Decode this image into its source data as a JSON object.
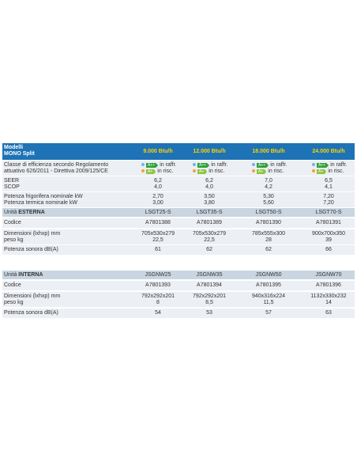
{
  "header": {
    "label": [
      "Modelli",
      "MONO Split"
    ],
    "columns": [
      "9.000 Btu/h",
      "12.000 Btu/h",
      "18.000 Btu/h",
      "24.000 Btu/h"
    ]
  },
  "efficiency": {
    "label": [
      "Classe di efficienza secondo Regolamento",
      "attuativo 626/2011 - Direttiva 2009/125/CE"
    ],
    "cells": [
      [
        {
          "badge": "A++",
          "text": "in raffr."
        },
        {
          "badge": "A+",
          "text": "in risc."
        }
      ],
      [
        {
          "badge": "A++",
          "text": "in raffr."
        },
        {
          "badge": "A+",
          "text": "in risc."
        }
      ],
      [
        {
          "badge": "A++",
          "text": "in raffr."
        },
        {
          "badge": "A+",
          "text": "in risc."
        }
      ],
      [
        {
          "badge": "A++",
          "text": "in raffr."
        },
        {
          "badge": "A+",
          "text": "in risc."
        }
      ]
    ]
  },
  "specs": [
    {
      "label": [
        "SEER",
        "SCOP"
      ],
      "cells": [
        [
          "6,2",
          "4,0"
        ],
        [
          "6,2",
          "4,0"
        ],
        [
          "7,0",
          "4,2"
        ],
        [
          "6,5",
          "4,1"
        ]
      ]
    },
    {
      "label": [
        "Potenza frigorifera nominale kW",
        "Potenza termica nominale kW"
      ],
      "cells": [
        [
          "2,70",
          "3,00"
        ],
        [
          "3,50",
          "3,80"
        ],
        [
          "5,30",
          "5,60"
        ],
        [
          "7,20",
          "7,20"
        ]
      ]
    }
  ],
  "outdoor": {
    "heading": [
      "Unità",
      "ESTERNA"
    ],
    "models": [
      "LSGT25-S",
      "LSGT35-S",
      "LSGT50-S",
      "LSGT70-S"
    ],
    "rows": [
      {
        "label": [
          "Codice"
        ],
        "cells": [
          [
            "A7801388"
          ],
          [
            "A7801389"
          ],
          [
            "A7801390"
          ],
          [
            "A7801391"
          ]
        ]
      },
      {
        "label": [
          "Dimensioni (lxhxp) mm",
          "peso kg"
        ],
        "cells": [
          [
            "705x530x279",
            "22,5"
          ],
          [
            "705x530x279",
            "22,5"
          ],
          [
            "785x555x300",
            "28"
          ],
          [
            "900x700x350",
            "39"
          ]
        ]
      },
      {
        "label": [
          "Potenza sonora dB(A)"
        ],
        "cells": [
          [
            "61"
          ],
          [
            "62"
          ],
          [
            "62"
          ],
          [
            "66"
          ]
        ]
      }
    ]
  },
  "indoor": {
    "heading": [
      "Unità",
      "INTERNA"
    ],
    "models": [
      "JSGNW25",
      "JSGNW35",
      "JSGNW50",
      "JSGNW70"
    ],
    "rows": [
      {
        "label": [
          "Codice"
        ],
        "cells": [
          [
            "A7801393"
          ],
          [
            "A7801394"
          ],
          [
            "A7801395"
          ],
          [
            "A7801396"
          ]
        ]
      },
      {
        "label": [
          "Dimensioni (lxhxp) mm",
          "peso kg"
        ],
        "cells": [
          [
            "792x292x201",
            "8"
          ],
          [
            "792x292x201",
            "8,5"
          ],
          [
            "940x316x224",
            "11,5"
          ],
          [
            "1132x330x232",
            "14"
          ]
        ]
      },
      {
        "label": [
          "Potenza sonora dB(A)"
        ],
        "cells": [
          [
            "54"
          ],
          [
            "53"
          ],
          [
            "57"
          ],
          [
            "63"
          ]
        ]
      }
    ]
  }
}
